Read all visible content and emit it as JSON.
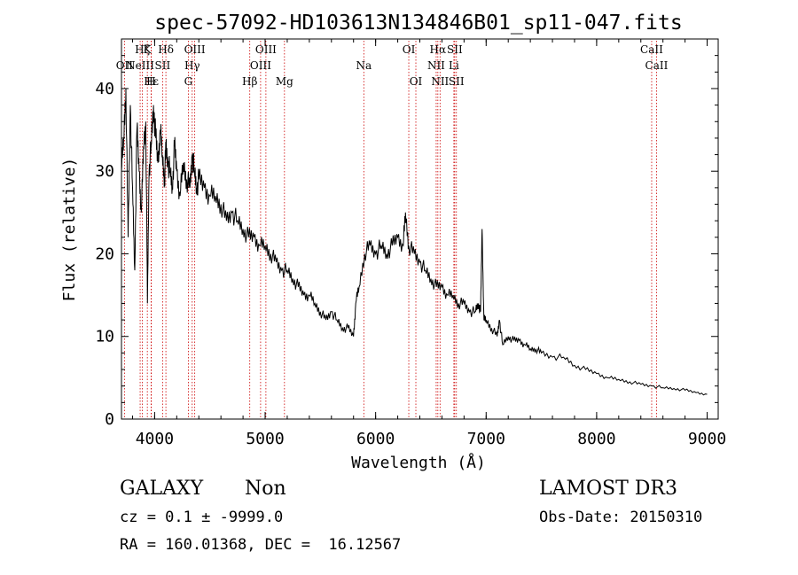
{
  "chart_data": {
    "type": "line",
    "title": "spec-57092-HD103613N134846B01_sp11-047.fits",
    "xlabel": "Wavelength (Å)",
    "ylabel": "Flux (relative)",
    "xlim": [
      3700,
      9100
    ],
    "ylim": [
      0,
      46
    ],
    "xticks": [
      4000,
      5000,
      6000,
      7000,
      8000,
      9000
    ],
    "xtick_labels": [
      "4000",
      "5000",
      "6000",
      "7000",
      "8000",
      "9000"
    ],
    "yticks": [
      0,
      10,
      20,
      30,
      40
    ],
    "ytick_labels": [
      "0",
      "10",
      "20",
      "30",
      "40"
    ],
    "series": [
      {
        "name": "spectrum",
        "x": [
          3700,
          3720,
          3740,
          3760,
          3780,
          3800,
          3820,
          3840,
          3860,
          3880,
          3900,
          3920,
          3935,
          3950,
          3968,
          3990,
          4010,
          4030,
          4050,
          4070,
          4090,
          4102,
          4120,
          4140,
          4160,
          4180,
          4200,
          4230,
          4260,
          4290,
          4320,
          4340,
          4360,
          4380,
          4400,
          4450,
          4500,
          4550,
          4600,
          4650,
          4700,
          4750,
          4800,
          4850,
          4900,
          4950,
          5000,
          5050,
          5100,
          5150,
          5200,
          5250,
          5300,
          5350,
          5400,
          5450,
          5500,
          5550,
          5600,
          5650,
          5700,
          5750,
          5800,
          5820,
          5850,
          5900,
          5950,
          6000,
          6050,
          6100,
          6150,
          6200,
          6250,
          6270,
          6300,
          6350,
          6400,
          6450,
          6500,
          6550,
          6600,
          6650,
          6700,
          6750,
          6800,
          6850,
          6900,
          6930,
          6950,
          6963,
          6980,
          7000,
          7050,
          7100,
          7120,
          7150,
          7200,
          7250,
          7300,
          7350,
          7400,
          7450,
          7500,
          7600,
          7700,
          7800,
          7900,
          8000,
          8100,
          8200,
          8300,
          8400,
          8500,
          8600,
          8700,
          8800,
          8900,
          9000
        ],
        "y": [
          30,
          34,
          40,
          22,
          38,
          28,
          18,
          35,
          30,
          25,
          33,
          36,
          14,
          30,
          33,
          38,
          34,
          31,
          35,
          32,
          29,
          33,
          31,
          30,
          28,
          33,
          30,
          27,
          31,
          29,
          28,
          32,
          30,
          28,
          29,
          28,
          27,
          27,
          26,
          24,
          25,
          24,
          23,
          22,
          22,
          21,
          21,
          20,
          19,
          18,
          18,
          17,
          16,
          15,
          15,
          14,
          13,
          12,
          13,
          12,
          11,
          11,
          10,
          14,
          16,
          20,
          21,
          20,
          21,
          20,
          21,
          22,
          21,
          25,
          21,
          20,
          19,
          18,
          17,
          16,
          16,
          15,
          15,
          14,
          14,
          13,
          13,
          14,
          13,
          23,
          12,
          12,
          11,
          10,
          12,
          9,
          10,
          9.5,
          9.5,
          9,
          8.5,
          8.5,
          8,
          7.5,
          7.5,
          6.5,
          6,
          5.5,
          5,
          4.8,
          4.5,
          4.2,
          4,
          3.8,
          3.7,
          3.5,
          3.2,
          3
        ]
      }
    ],
    "lines": [
      {
        "x": 3934,
        "label": "K",
        "row": 0
      },
      {
        "x": 3968,
        "label": "H",
        "row": 2
      },
      {
        "x": 3727,
        "label": "OII",
        "row": 1
      },
      {
        "x": 3869,
        "label": "NeIII",
        "row": 1
      },
      {
        "x": 3889,
        "label": "Hζ",
        "row": 0
      },
      {
        "x": 3970,
        "label": "Hε",
        "row": 2
      },
      {
        "x": 4102,
        "label": "Hδ",
        "row": 0
      },
      {
        "x": 4072,
        "label": "SII",
        "row": 1
      },
      {
        "x": 4340,
        "label": "Hγ",
        "row": 1
      },
      {
        "x": 4363,
        "label": "OIII",
        "row": 0
      },
      {
        "x": 4305,
        "label": "G",
        "row": 2
      },
      {
        "x": 4861,
        "label": "Hβ",
        "row": 2
      },
      {
        "x": 4959,
        "label": "OIII",
        "row": 1
      },
      {
        "x": 5007,
        "label": "OIII",
        "row": 0
      },
      {
        "x": 5175,
        "label": "Mg",
        "row": 2
      },
      {
        "x": 5893,
        "label": "Na",
        "row": 1
      },
      {
        "x": 6300,
        "label": "OI",
        "row": 0
      },
      {
        "x": 6364,
        "label": "OI",
        "row": 2
      },
      {
        "x": 6563,
        "label": "Hα",
        "row": 0
      },
      {
        "x": 6548,
        "label": "NII",
        "row": 1
      },
      {
        "x": 6583,
        "label": "NII",
        "row": 2
      },
      {
        "x": 6716,
        "label": "SII",
        "row": 0
      },
      {
        "x": 6731,
        "label": "SII",
        "row": 2
      },
      {
        "x": 6708,
        "label": "Li",
        "row": 1
      },
      {
        "x": 8498,
        "label": "CaII",
        "row": 0
      },
      {
        "x": 8542,
        "label": "CaII",
        "row": 1
      }
    ]
  },
  "info": {
    "class": "GALAXY",
    "subclass": "Non",
    "survey": "LAMOST DR3",
    "cz": "cz = 0.1 ± -9999.0",
    "obs_date": "Obs-Date: 20150310",
    "radec": "RA = 160.01368, DEC =  16.12567"
  },
  "colors": {
    "line": "#000000",
    "marker": "#cc0000"
  }
}
